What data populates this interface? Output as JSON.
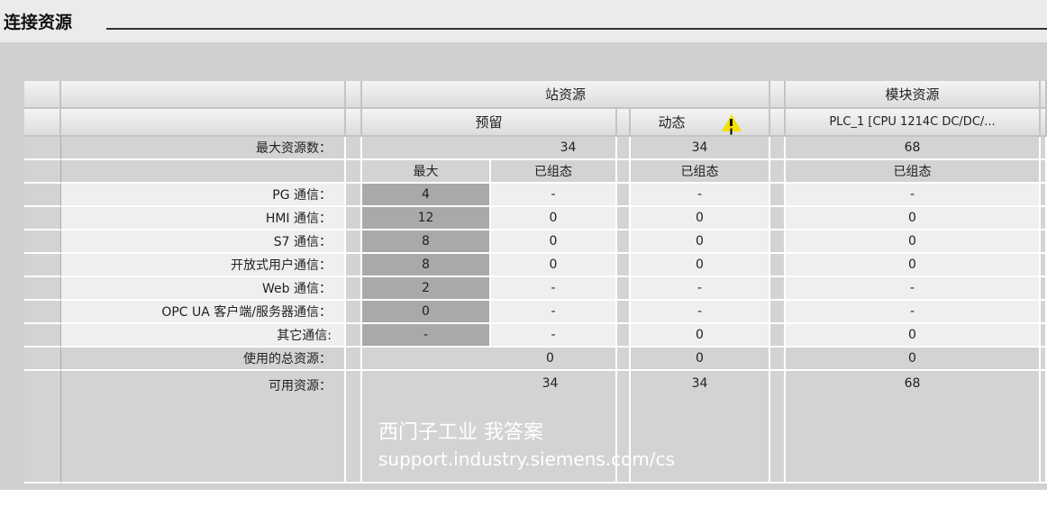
{
  "title": "连接资源",
  "header": {
    "station": "站资源",
    "module": "模块资源",
    "reserved": "预留",
    "dynamic": "动态",
    "plc": "PLC_1 [CPU 1214C DC/DC/...",
    "warning_icon": "warning-triangle-icon"
  },
  "max_resources": {
    "label": "最大资源数：",
    "reserved": "34",
    "dynamic": "34",
    "module": "68"
  },
  "subheader": {
    "max": "最大",
    "configured": "已组态"
  },
  "rows": [
    {
      "label": "PG 通信：",
      "max": "4",
      "reserved": "-",
      "dynamic": "-",
      "module": "-"
    },
    {
      "label": "HMI 通信：",
      "max": "12",
      "reserved": "0",
      "dynamic": "0",
      "module": "0"
    },
    {
      "label": "S7 通信：",
      "max": "8",
      "reserved": "0",
      "dynamic": "0",
      "module": "0"
    },
    {
      "label": "开放式用户通信：",
      "max": "8",
      "reserved": "0",
      "dynamic": "0",
      "module": "0"
    },
    {
      "label": "Web 通信：",
      "max": "2",
      "reserved": "-",
      "dynamic": "-",
      "module": "-"
    },
    {
      "label": "OPC UA 客户端/服务器通信：",
      "max": "0",
      "reserved": "-",
      "dynamic": "-",
      "module": "-"
    },
    {
      "label": "其它通信:",
      "max": "-",
      "reserved": "-",
      "dynamic": "0",
      "module": "0"
    }
  ],
  "total_used": {
    "label": "使用的总资源：",
    "reserved": "0",
    "dynamic": "0",
    "module": "0"
  },
  "available": {
    "label": "可用资源：",
    "reserved": "34",
    "dynamic": "34",
    "module": "68"
  },
  "watermark": {
    "line1": "西门子工业 我答案",
    "line2": "support.industry.siemens.com/cs"
  }
}
